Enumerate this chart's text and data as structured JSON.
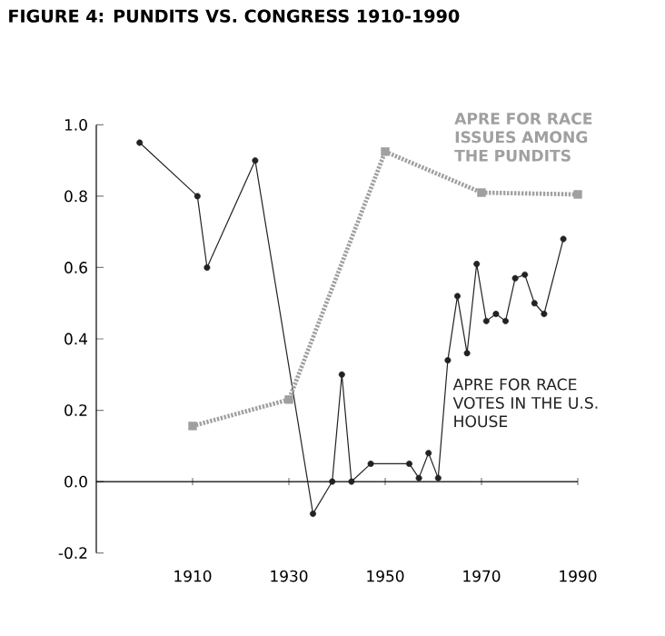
{
  "chart_data": {
    "type": "line",
    "title": "FIGURE 4: PUNDITS VS. CONGRESS 1910-1990",
    "xlim": [
      1890,
      1990
    ],
    "xticks": [
      1910,
      1930,
      1950,
      1970,
      1990
    ],
    "ylim": [
      -0.2,
      1.0
    ],
    "yticks": [
      -0.2,
      {
        "value": 0,
        "label": "0.0"
      },
      0.2,
      0.4,
      0.6,
      0.8,
      {
        "value": 1.0,
        "label": "1.0"
      }
    ],
    "series": [
      {
        "name": "APRE FOR RACE VOTES IN THE U.S. HOUSE",
        "color": "#222222",
        "marker": "circle",
        "line_style": "solid",
        "x": [
          1899,
          1911,
          1913,
          1923,
          1935,
          1939,
          1941,
          1943,
          1947,
          1955,
          1957,
          1959,
          1961,
          1963,
          1965,
          1967,
          1969,
          1971,
          1973,
          1975,
          1977,
          1979,
          1981,
          1983,
          1987
        ],
        "values": [
          0.95,
          0.8,
          0.6,
          0.9,
          -0.09,
          0.0,
          0.3,
          0.0,
          0.05,
          0.05,
          0.01,
          0.08,
          0.01,
          0.34,
          0.52,
          0.36,
          0.61,
          0.45,
          0.47,
          0.45,
          0.57,
          0.58,
          0.5,
          0.47,
          0.68
        ]
      },
      {
        "name": "**APRE FOR RACE ISSUES AMONG THE PUNDITS**",
        "color": "#a0a0a0",
        "marker": "square",
        "line_style": "dotted",
        "x": [
          1910,
          1930,
          1950,
          1970,
          1990
        ],
        "values": [
          0.156,
          0.23,
          0.925,
          0.81,
          0.805
        ]
      }
    ]
  }
}
